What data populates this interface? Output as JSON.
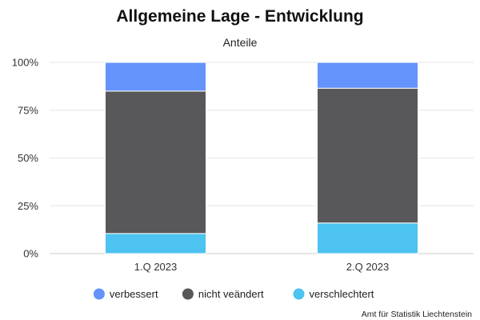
{
  "chart_data": {
    "type": "bar",
    "stacked": true,
    "title": "Allgemeine Lage - Entwicklung",
    "subtitle": "Anteile",
    "categories": [
      "1.Q 2023",
      "2.Q 2023"
    ],
    "series": [
      {
        "name": "verschlechtert",
        "values": [
          10.5,
          16
        ],
        "color": "#4CC3F1"
      },
      {
        "name": "nicht veändert",
        "values": [
          74.5,
          70.5
        ],
        "color": "#58585A"
      },
      {
        "name": "verbessert",
        "values": [
          15,
          13.5
        ],
        "color": "#6493FB"
      }
    ],
    "legend_order": [
      "verbessert",
      "nicht veändert",
      "verschlechtert"
    ],
    "y_ticks": [
      "0%",
      "25%",
      "50%",
      "75%",
      "100%"
    ],
    "ylim": [
      0,
      100
    ],
    "grid": true,
    "legend_position": "bottom-center"
  },
  "credit": "Amt für Statistik Liechtenstein"
}
